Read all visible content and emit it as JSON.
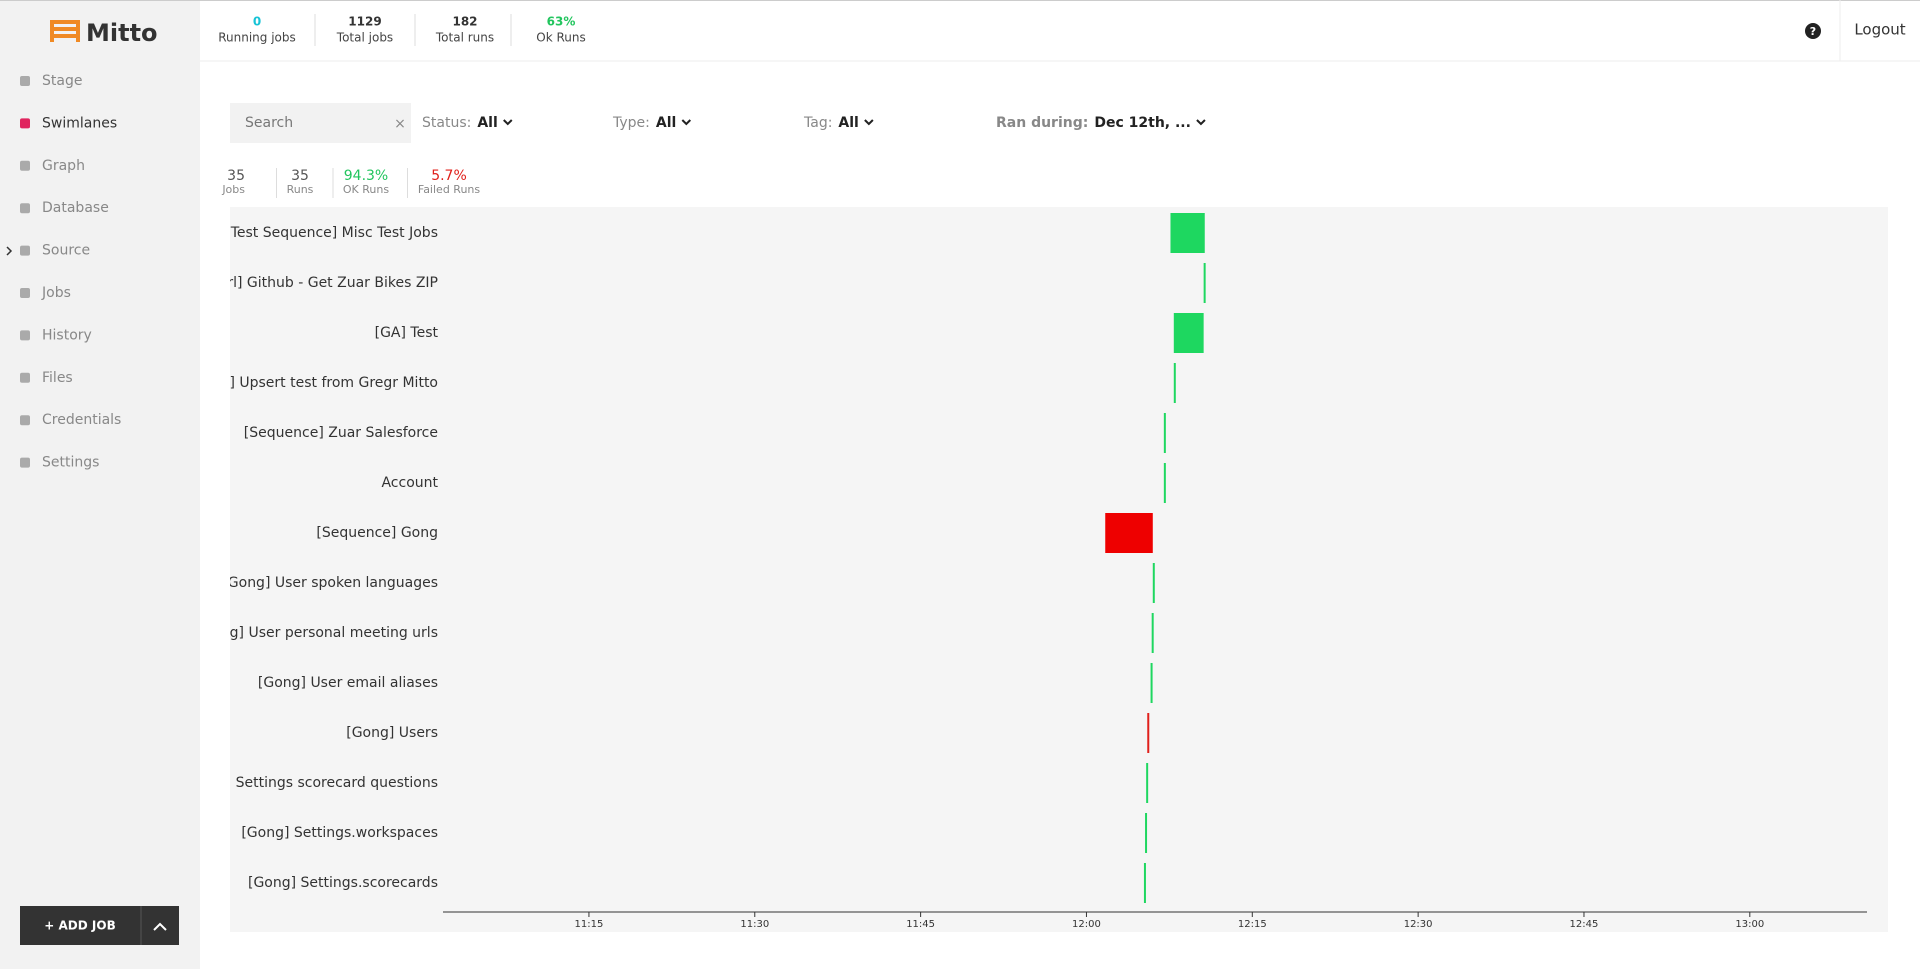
{
  "brand": "Mitto",
  "nav": [
    "Stage",
    "Swimlanes",
    "Graph",
    "Database",
    "Source",
    "Jobs",
    "History",
    "Files",
    "Credentials",
    "Settings"
  ],
  "active_nav": 1,
  "add_job": "+ ADD JOB",
  "header": {
    "stats": [
      {
        "value": "0",
        "label": "Running jobs",
        "color": "#17c3d6"
      },
      {
        "value": "1129",
        "label": "Total jobs",
        "color": "#333333"
      },
      {
        "value": "182",
        "label": "Total runs",
        "color": "#333333"
      },
      {
        "value": "63%",
        "label": "Ok Runs",
        "color": "#22c55e"
      }
    ],
    "help": "?",
    "logout": "Logout"
  },
  "filters": {
    "search_placeholder": "Search",
    "status": {
      "label": "Status:",
      "value": "All"
    },
    "type": {
      "label": "Type:",
      "value": "All"
    },
    "tag": {
      "label": "Tag:",
      "value": "All"
    },
    "ran_during": {
      "label": "Ran during:",
      "value": "Dec 12th, ..."
    }
  },
  "summary": [
    {
      "value": "35",
      "label": "Jobs",
      "color": "#555555"
    },
    {
      "value": "35",
      "label": "Runs",
      "color": "#555555"
    },
    {
      "value": "94.3%",
      "label": "OK Runs",
      "color": "#22c55e"
    },
    {
      "value": "5.7%",
      "label": "Failed Runs",
      "color": "#e0201b"
    }
  ],
  "chart_data": {
    "type": "swimlane",
    "categories": [
      "[Test Sequence] Misc Test Jobs",
      "cUrl] Github - Get Zuar Bikes ZIP",
      "[GA] Test",
      "ry] Upsert test from Gregr Mitto",
      "[Sequence] Zuar Salesforce",
      "Account",
      "[Sequence] Gong",
      "[Gong] User spoken languages",
      "ong] User personal meeting urls",
      "[Gong] User email aliases",
      "[Gong] Users",
      "ng] Settings scorecard questions",
      "[Gong] Settings.workspaces",
      "[Gong] Settings.scorecards"
    ],
    "starts": [
      727.6,
      730.6,
      727.9,
      727.9,
      727.0,
      727.0,
      721.7,
      726.0,
      725.9,
      725.8,
      725.5,
      725.4,
      725.3,
      725.2
    ],
    "ends": [
      730.7,
      730.7,
      730.6,
      728.0,
      727.1,
      727.1,
      726.0,
      726.1,
      726.0,
      725.9,
      725.6,
      725.5,
      725.4,
      725.3
    ],
    "colors": [
      "#1ed760",
      "#1ed760",
      "#1ed760",
      "#1ed760",
      "#1ed760",
      "#1ed760",
      "#ee0000",
      "#1ed760",
      "#1ed760",
      "#1ed760",
      "#e0201b",
      "#1ed760",
      "#1ed760",
      "#1ed760"
    ],
    "xlim": [
      661.8,
      790.6
    ],
    "xticks": [
      {
        "value": 675,
        "label": "11:15"
      },
      {
        "value": 690,
        "label": "11:30"
      },
      {
        "value": 705,
        "label": "11:45"
      },
      {
        "value": 720,
        "label": "12:00"
      },
      {
        "value": 735,
        "label": "12:15"
      },
      {
        "value": 750,
        "label": "12:30"
      },
      {
        "value": 765,
        "label": "12:45"
      },
      {
        "value": 780,
        "label": "13:00"
      }
    ]
  }
}
